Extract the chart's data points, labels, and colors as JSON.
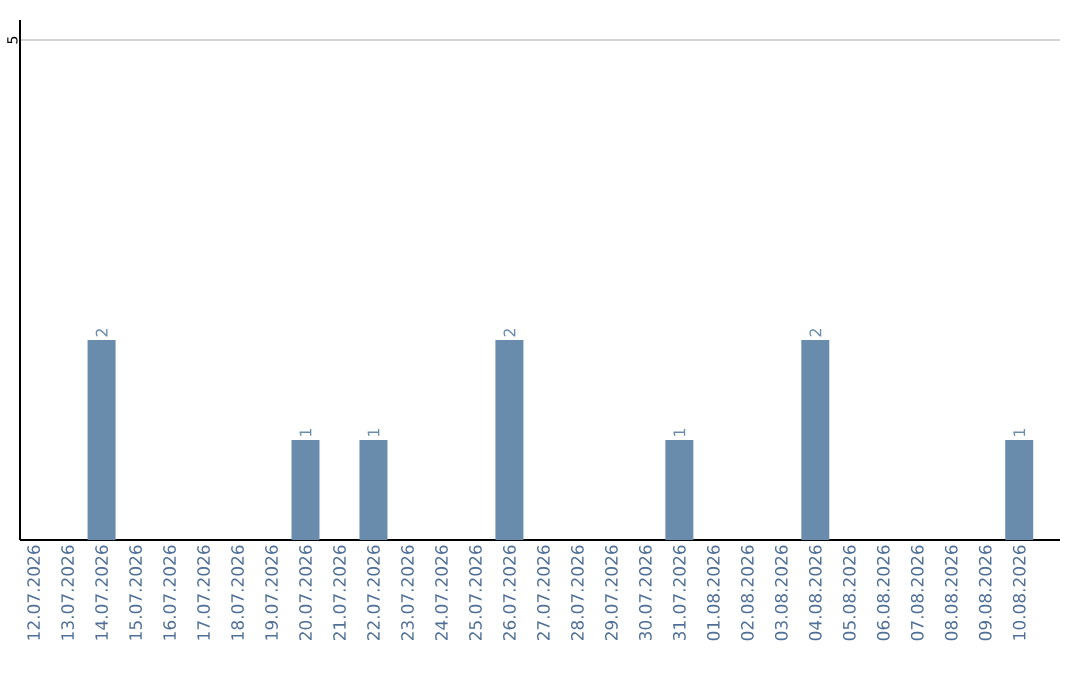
{
  "chart_data": {
    "type": "bar",
    "categories": [
      "12.07.2026",
      "13.07.2026",
      "14.07.2026",
      "15.07.2026",
      "16.07.2026",
      "17.07.2026",
      "18.07.2026",
      "19.07.2026",
      "20.07.2026",
      "21.07.2026",
      "22.07.2026",
      "23.07.2026",
      "24.07.2026",
      "25.07.2026",
      "26.07.2026",
      "27.07.2026",
      "28.07.2026",
      "29.07.2026",
      "30.07.2026",
      "31.07.2026",
      "01.08.2026",
      "02.08.2026",
      "03.08.2026",
      "04.08.2026",
      "05.08.2026",
      "06.08.2026",
      "07.08.2026",
      "08.08.2026",
      "09.08.2026",
      "10.08.2026"
    ],
    "values": [
      0,
      0,
      2,
      0,
      0,
      0,
      0,
      0,
      1,
      0,
      1,
      0,
      0,
      0,
      2,
      0,
      0,
      0,
      0,
      1,
      0,
      0,
      0,
      2,
      0,
      0,
      0,
      0,
      0,
      1
    ],
    "value_labels": [
      null,
      null,
      "2",
      null,
      null,
      null,
      null,
      null,
      "1",
      null,
      "1",
      null,
      null,
      null,
      "2",
      null,
      null,
      null,
      null,
      "1",
      null,
      null,
      null,
      "2",
      null,
      null,
      null,
      null,
      null,
      "1"
    ],
    "color": "#6a8cac",
    "ylim": [
      0,
      5.2
    ],
    "yticks": [
      5
    ],
    "grid": "y"
  }
}
